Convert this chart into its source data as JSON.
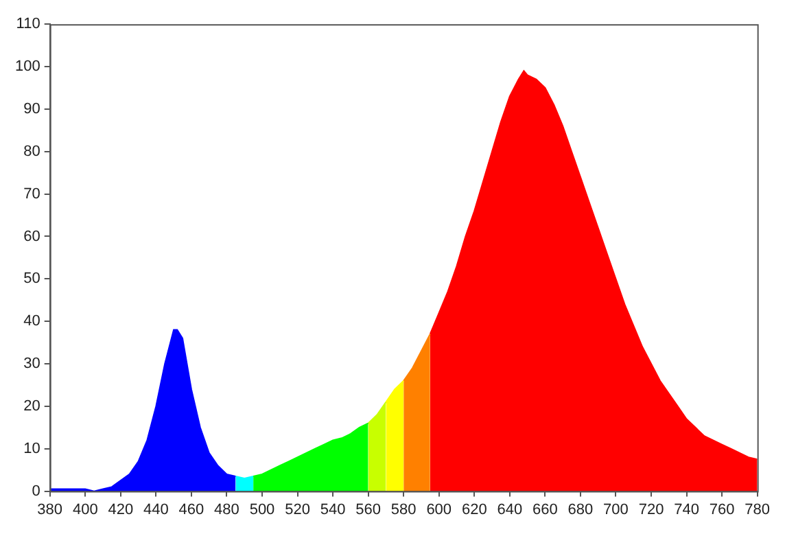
{
  "chart_data": {
    "type": "area",
    "series": [
      {
        "color": "#0000ff",
        "x": [
          380,
          385,
          390,
          395,
          400,
          405,
          410,
          415,
          420,
          425,
          430,
          435,
          440,
          445,
          450,
          452,
          455,
          460,
          465,
          470,
          475,
          480,
          485
        ],
        "values": [
          0.5,
          0.5,
          0.5,
          0.5,
          0.5,
          0,
          0.5,
          1,
          2.5,
          4,
          7,
          12,
          20,
          30,
          38,
          38,
          36,
          24,
          15,
          9,
          6,
          4,
          3.5
        ]
      },
      {
        "color": "#00ffff",
        "x": [
          485,
          490,
          495
        ],
        "values": [
          3.5,
          3,
          3.5
        ]
      },
      {
        "color": "#00ff00",
        "x": [
          495,
          500,
          505,
          510,
          515,
          520,
          525,
          530,
          535,
          540,
          545,
          550,
          555,
          560
        ],
        "values": [
          3.5,
          4,
          5,
          6,
          7,
          8,
          9,
          10,
          11,
          12,
          12.5,
          13.5,
          15,
          16
        ]
      },
      {
        "color": "#c8ff00",
        "x": [
          560,
          565,
          570
        ],
        "values": [
          16,
          18,
          21
        ]
      },
      {
        "color": "#ffff00",
        "x": [
          570,
          575,
          580
        ],
        "values": [
          21,
          24,
          26
        ]
      },
      {
        "color": "#ff8000",
        "x": [
          580,
          585,
          590,
          595
        ],
        "values": [
          26,
          29,
          33,
          37
        ]
      },
      {
        "color": "#ff0000",
        "x": [
          595,
          600,
          605,
          610,
          615,
          620,
          625,
          630,
          635,
          640,
          645,
          648,
          650,
          655,
          660,
          665,
          670,
          675,
          680,
          685,
          690,
          695,
          700,
          705,
          710,
          715,
          720,
          725,
          730,
          735,
          740,
          745,
          750,
          755,
          760,
          765,
          770,
          775,
          780
        ],
        "values": [
          37,
          42,
          47,
          53,
          60,
          66,
          73,
          80,
          87,
          93,
          97,
          99,
          98,
          97,
          95,
          91,
          86,
          80,
          74,
          68,
          62,
          56,
          50,
          44,
          39,
          34,
          30,
          26,
          23,
          20,
          17,
          15,
          13,
          12,
          11,
          10,
          9,
          8,
          7.5
        ]
      }
    ],
    "xlim": [
      380,
      780
    ],
    "xticks": [
      380,
      400,
      420,
      440,
      460,
      480,
      500,
      520,
      540,
      560,
      580,
      600,
      620,
      640,
      660,
      680,
      700,
      720,
      740,
      760,
      780
    ],
    "ylim": [
      0,
      110
    ],
    "yticks": [
      0,
      10,
      20,
      30,
      40,
      50,
      60,
      70,
      80,
      90,
      100,
      110
    ],
    "grid": false,
    "legend": false
  }
}
